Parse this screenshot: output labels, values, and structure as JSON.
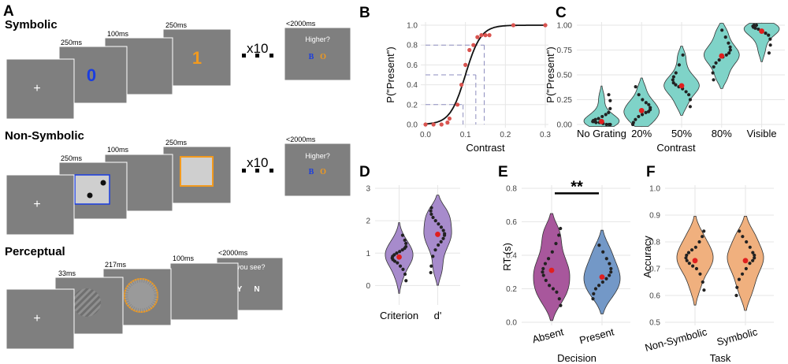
{
  "panel_a": {
    "label": "A",
    "repeat_text": "x10",
    "symbolic": {
      "title": "Symbolic",
      "timings": [
        "250ms",
        "100ms",
        "250ms",
        "<2000ms"
      ],
      "fixation": "+",
      "digit_1": "0",
      "digit_2": "1",
      "digit_1_color": "#1a3de0",
      "digit_2_color": "#f29a1e",
      "question": "Higher?",
      "option_1": "B",
      "option_2": "O",
      "option_1_color": "#1a3de0",
      "option_2_color": "#f29a1e"
    },
    "nonsymbolic": {
      "title": "Non-Symbolic",
      "timings": [
        "250ms",
        "100ms",
        "250ms",
        "<2000ms"
      ],
      "fixation": "+",
      "question": "Higher?",
      "option_1": "B",
      "option_2": "O",
      "box_1_color": "#1a3de0",
      "box_2_color": "#f29a1e"
    },
    "perceptual": {
      "title": "Perceptual",
      "timings": [
        "33ms",
        "217ms",
        "100ms",
        "<2000ms"
      ],
      "fixation": "+",
      "question": "Did you see?",
      "option_1": "Y",
      "option_2": "N",
      "ring_color": "#f29a1e"
    }
  },
  "chart_data": [
    {
      "panel": "B",
      "type": "scatter",
      "xlabel": "Contrast",
      "ylabel": "P(\"Present\")",
      "xlim": [
        0,
        0.3
      ],
      "ylim": [
        0,
        1
      ],
      "xticks": [
        "0.0",
        "0.1",
        "0.2",
        "0.3"
      ],
      "yticks": [
        "0.0",
        "0.2",
        "0.4",
        "0.6",
        "0.8",
        "1.0"
      ],
      "points": [
        [
          0,
          0
        ],
        [
          0.02,
          0
        ],
        [
          0.04,
          0
        ],
        [
          0.055,
          0.02
        ],
        [
          0.06,
          0.06
        ],
        [
          0.08,
          0.2
        ],
        [
          0.09,
          0.4
        ],
        [
          0.1,
          0.6
        ],
        [
          0.11,
          0.75
        ],
        [
          0.12,
          0.8
        ],
        [
          0.13,
          0.88
        ],
        [
          0.14,
          0.9
        ],
        [
          0.15,
          0.9
        ],
        [
          0.16,
          0.9
        ],
        [
          0.22,
          1
        ],
        [
          0.3,
          1
        ]
      ],
      "fit": {
        "type": "logistic",
        "midpoint": 0.1,
        "slope": 52
      },
      "threshold_y": [
        0.2,
        0.5,
        0.8
      ],
      "threshold_x": [
        0.094,
        0.126,
        0.147
      ],
      "point_color": "#d9534f"
    },
    {
      "panel": "C",
      "type": "violin",
      "xlabel": "Contrast",
      "ylabel": "P(\"Present\")",
      "ylim": [
        0,
        1
      ],
      "yticks": [
        "0.00",
        "0.25",
        "0.50",
        "0.75",
        "1.00"
      ],
      "categories": [
        "No Grating",
        "20%",
        "50%",
        "80%",
        "Visible"
      ],
      "means": [
        0.03,
        0.14,
        0.39,
        0.69,
        0.94
      ],
      "fill": "#7fd3c8",
      "points": [
        [
          0.0,
          0.0,
          0.0,
          0.01,
          0.02,
          0.02,
          0.03,
          0.03,
          0.04,
          0.05,
          0.06,
          0.08,
          0.1,
          0.12,
          0.16,
          0.24,
          0.3
        ],
        [
          0.0,
          0.02,
          0.05,
          0.08,
          0.1,
          0.12,
          0.13,
          0.15,
          0.17,
          0.2,
          0.22,
          0.25,
          0.3,
          0.38
        ],
        [
          0.18,
          0.25,
          0.3,
          0.33,
          0.36,
          0.38,
          0.4,
          0.42,
          0.45,
          0.48,
          0.52,
          0.6,
          0.7
        ],
        [
          0.45,
          0.52,
          0.58,
          0.62,
          0.65,
          0.68,
          0.7,
          0.72,
          0.75,
          0.78,
          0.82,
          0.88,
          0.95
        ],
        [
          0.72,
          0.8,
          0.86,
          0.9,
          0.92,
          0.94,
          0.96,
          0.97,
          0.98,
          0.99,
          1.0,
          1.0
        ]
      ]
    },
    {
      "panel": "D",
      "type": "violin",
      "xlabel": "",
      "ylabel": "",
      "ylim": [
        -0.5,
        3
      ],
      "yticks": [
        "0",
        "1",
        "2",
        "3"
      ],
      "categories": [
        "Criterion",
        "d'"
      ],
      "means": [
        0.88,
        1.58
      ],
      "fill": "#a78bcc",
      "points": [
        [
          0.15,
          0.35,
          0.5,
          0.6,
          0.7,
          0.75,
          0.8,
          0.85,
          0.9,
          0.95,
          1.0,
          1.05,
          1.1,
          1.15,
          1.2,
          1.3,
          1.4,
          1.55
        ],
        [
          0.4,
          0.6,
          0.9,
          1.1,
          1.25,
          1.35,
          1.45,
          1.55,
          1.6,
          1.7,
          1.8,
          1.9,
          2.0,
          2.1,
          2.2,
          2.3,
          2.4
        ]
      ]
    },
    {
      "panel": "E",
      "type": "violin",
      "xlabel": "Decision",
      "ylabel": "RT (s)",
      "ylim": [
        0,
        0.8
      ],
      "yticks": [
        "0.0",
        "0.2",
        "0.4",
        "0.6",
        "0.8"
      ],
      "categories": [
        "Absent",
        "Present"
      ],
      "means": [
        0.31,
        0.27
      ],
      "fills": [
        "#a8579c",
        "#7398c7"
      ],
      "annotation": "**",
      "points": [
        [
          0.1,
          0.14,
          0.18,
          0.2,
          0.22,
          0.25,
          0.28,
          0.3,
          0.32,
          0.35,
          0.38,
          0.42,
          0.47,
          0.52,
          0.56
        ],
        [
          0.14,
          0.17,
          0.2,
          0.22,
          0.24,
          0.26,
          0.28,
          0.3,
          0.32,
          0.35,
          0.38,
          0.42,
          0.46
        ]
      ]
    },
    {
      "panel": "F",
      "type": "violin",
      "xlabel": "Task",
      "ylabel": "Accuracy",
      "ylim": [
        0.5,
        1
      ],
      "yticks": [
        "0.5",
        "0.6",
        "0.7",
        "0.8",
        "0.9",
        "1.0"
      ],
      "categories": [
        "Non-Symbolic",
        "Symbolic"
      ],
      "means": [
        0.73,
        0.73
      ],
      "fill": "#f0b07e",
      "points": [
        [
          0.62,
          0.65,
          0.68,
          0.7,
          0.71,
          0.72,
          0.73,
          0.74,
          0.75,
          0.76,
          0.77,
          0.78,
          0.8,
          0.82,
          0.84
        ],
        [
          0.6,
          0.63,
          0.66,
          0.68,
          0.7,
          0.72,
          0.73,
          0.74,
          0.75,
          0.76,
          0.78,
          0.8,
          0.82,
          0.84
        ]
      ]
    }
  ]
}
